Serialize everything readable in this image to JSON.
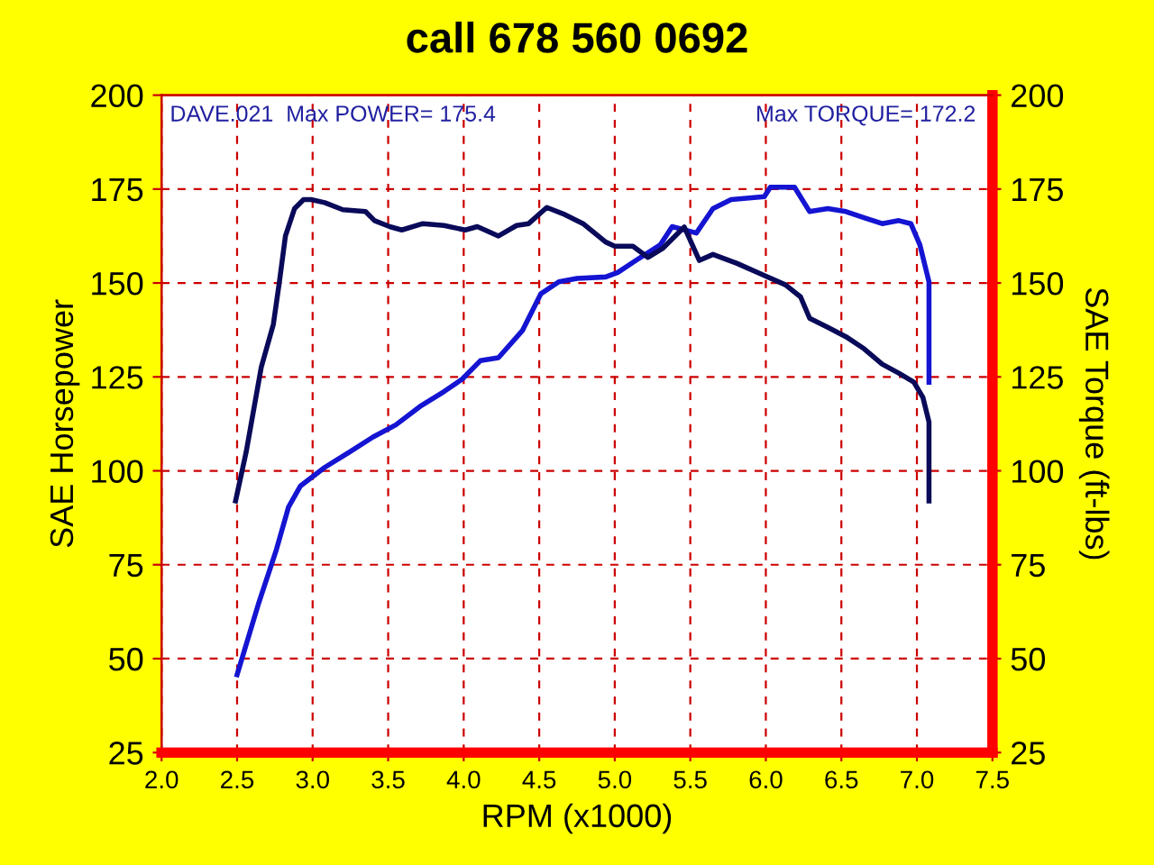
{
  "chart_data": {
    "type": "line",
    "title": "call 678 560 0692",
    "xlabel": "RPM (x1000)",
    "ylabel": "SAE Horsepower",
    "y2label": "SAE Torque (ft-lbs)",
    "annotations": [
      "DAVE.021  Max POWER= 175.4",
      "Max TORQUE= 172.2"
    ],
    "series": [
      {
        "color": "#1414d2",
        "axis": "y",
        "x": [
          2.5,
          2.64,
          2.76,
          2.84,
          2.92,
          3.08,
          3.24,
          3.4,
          3.55,
          3.71,
          3.87,
          3.99,
          4.11,
          4.23,
          4.39,
          4.51,
          4.63,
          4.75,
          4.94,
          5.02,
          5.14,
          5.3,
          5.38,
          5.54,
          5.65,
          5.77,
          5.99,
          6.03,
          6.19,
          6.29,
          6.41,
          6.53,
          6.65,
          6.77,
          6.88,
          6.96,
          7.02,
          7.08,
          7.08
        ],
        "values": [
          45.7,
          64.4,
          79,
          90.3,
          96,
          100.9,
          104.9,
          109,
          112.2,
          117.1,
          121.1,
          124.4,
          129.3,
          130.1,
          137.4,
          147.1,
          150.3,
          151.2,
          151.6,
          152.8,
          156,
          160.1,
          165,
          163.3,
          169.8,
          172.2,
          173,
          175.5,
          175.5,
          169,
          169.8,
          169,
          167.4,
          165.8,
          166.6,
          165.8,
          160.1,
          150.3,
          123.6
        ]
      },
      {
        "color": "#0a0a5a",
        "axis": "y2",
        "x": [
          2.49,
          2.56,
          2.66,
          2.74,
          2.78,
          2.82,
          2.88,
          2.94,
          2.99,
          3.08,
          3.2,
          3.35,
          3.41,
          3.51,
          3.59,
          3.73,
          3.87,
          4.01,
          4.09,
          4.23,
          4.35,
          4.43,
          4.55,
          4.67,
          4.79,
          4.94,
          5.0,
          5.12,
          5.22,
          5.32,
          5.46,
          5.56,
          5.65,
          5.81,
          5.99,
          6.13,
          6.23,
          6.29,
          6.41,
          6.53,
          6.65,
          6.77,
          6.88,
          6.98,
          7.04,
          7.08,
          7.08
        ],
        "values": [
          92,
          105,
          127.6,
          139,
          150.3,
          162.5,
          169.8,
          172.2,
          172.2,
          171.4,
          169.5,
          169,
          166.6,
          165,
          164.1,
          165.8,
          165.3,
          164.1,
          165,
          162.5,
          165.3,
          165.8,
          170.1,
          168.2,
          165.8,
          160.9,
          159.8,
          159.8,
          156.8,
          159.3,
          164.9,
          156,
          157.6,
          155.2,
          152,
          149.5,
          146.3,
          140.6,
          138.2,
          135.7,
          132.5,
          128.4,
          126,
          123.6,
          119.5,
          113,
          92
        ]
      }
    ],
    "xlim": [
      2.0,
      7.5
    ],
    "xticks": [
      {
        "value": 2,
        "label": "2.0"
      },
      2.5,
      {
        "value": 3,
        "label": "3.0"
      },
      3.5,
      {
        "value": 4,
        "label": "4.0"
      },
      4.5,
      {
        "value": 5,
        "label": "5.0"
      },
      5.5,
      {
        "value": 6,
        "label": "6.0"
      },
      6.5,
      {
        "value": 7,
        "label": "7.0"
      },
      7.5
    ],
    "ylim": [
      25,
      200
    ],
    "yticks": [
      25,
      50,
      75,
      100,
      125,
      150,
      175,
      200
    ],
    "y2lim": [
      25,
      200
    ],
    "y2ticks": [
      25,
      50,
      75,
      100,
      125,
      150,
      175,
      200
    ],
    "grid": true,
    "legend": false,
    "marker": "none",
    "line_style": "solid"
  }
}
